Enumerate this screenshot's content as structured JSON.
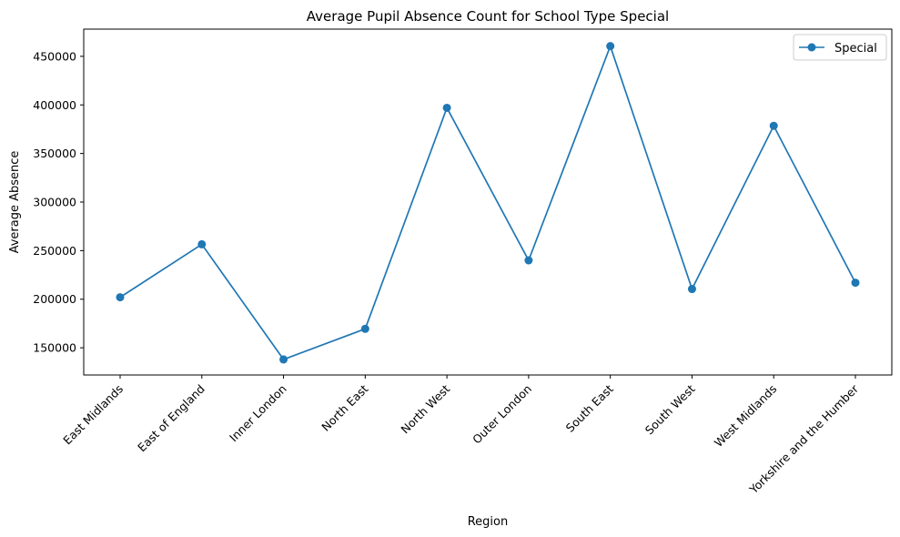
{
  "chart_data": {
    "type": "line",
    "title": "Average Pupil Absence Count for School Type Special",
    "xlabel": "Region",
    "ylabel": "Average Absence",
    "categories": [
      "East Midlands",
      "East of England",
      "Inner London",
      "North East",
      "North West",
      "Outer London",
      "South East",
      "South West",
      "West Midlands",
      "Yorkshire and the Humber"
    ],
    "series": [
      {
        "name": "Special",
        "color": "#1f77b4",
        "marker": "circle",
        "values": [
          202000,
          256500,
          138000,
          169500,
          397000,
          240000,
          460500,
          210500,
          378500,
          217000
        ]
      }
    ],
    "ylim": [
      122000,
      478000
    ],
    "yticks": [
      150000,
      200000,
      250000,
      300000,
      350000,
      400000,
      450000
    ],
    "ytick_labels": [
      "150000",
      "200000",
      "250000",
      "300000",
      "350000",
      "400000",
      "450000"
    ],
    "grid": false,
    "legend_position": "top-right"
  }
}
